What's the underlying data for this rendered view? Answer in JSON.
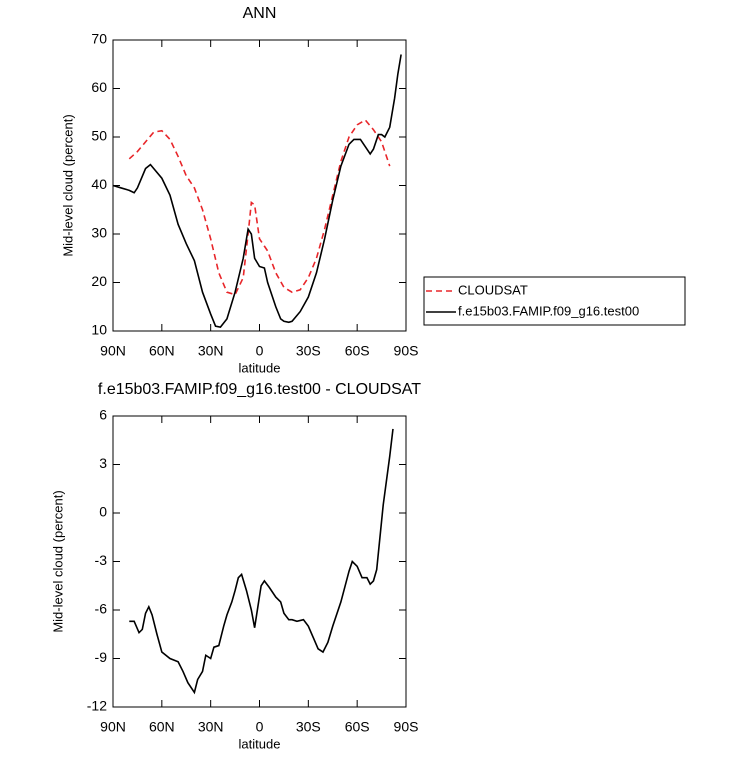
{
  "chart_data": [
    {
      "type": "line",
      "title": "ANN",
      "ylabel": "Mid-level cloud (percent)",
      "xlabel": "latitude",
      "xlim": [
        90,
        -90
      ],
      "xticks": [
        {
          "value": 90,
          "label": "90N"
        },
        {
          "value": 60,
          "label": "60N"
        },
        {
          "value": 30,
          "label": "30N"
        },
        0,
        {
          "value": -30,
          "label": "30S"
        },
        {
          "value": -60,
          "label": "60S"
        },
        {
          "value": -90,
          "label": "90S"
        }
      ],
      "ylim": [
        10,
        70
      ],
      "yticks": [
        10,
        20,
        30,
        40,
        50,
        60,
        70
      ],
      "legend": "right",
      "series": [
        {
          "name": "CLOUDSAT",
          "color": "#e8262a",
          "dash": "dashed",
          "x": [
            80,
            75,
            70,
            65,
            60,
            55,
            50,
            45,
            40,
            35,
            30,
            25,
            20,
            15,
            10,
            7,
            5,
            3,
            0,
            -3,
            -5,
            -10,
            -15,
            -20,
            -25,
            -30,
            -35,
            -40,
            -45,
            -50,
            -55,
            -60,
            -65,
            -70,
            -75,
            -80
          ],
          "values": [
            45.5,
            47,
            49,
            51,
            51.3,
            49.5,
            46,
            42,
            39.5,
            35,
            29,
            22,
            18,
            17.5,
            21,
            30,
            36.5,
            36,
            29,
            27.5,
            26.5,
            22,
            19,
            18,
            18.5,
            21,
            25,
            31,
            38,
            45,
            50,
            52.5,
            53.5,
            51.5,
            49,
            44
          ]
        },
        {
          "name": "f.e15b03.FAMIP.f09_g16.test00",
          "color": "#000000",
          "dash": "solid",
          "x": [
            90,
            85,
            80,
            77,
            75,
            70,
            67,
            65,
            60,
            55,
            50,
            45,
            40,
            35,
            30,
            27,
            24,
            20,
            15,
            10,
            7,
            5,
            3,
            0,
            -3,
            -5,
            -10,
            -13,
            -15,
            -18,
            -20,
            -25,
            -30,
            -35,
            -40,
            -45,
            -50,
            -55,
            -58,
            -62,
            -65,
            -68,
            -70,
            -73,
            -75,
            -77,
            -80,
            -83,
            -85,
            -87
          ],
          "values": [
            40,
            39.5,
            39,
            38.5,
            39.5,
            43.5,
            44.3,
            43.5,
            41.5,
            38,
            32,
            28,
            24.5,
            18,
            13.5,
            11,
            10.8,
            12.5,
            18,
            25,
            31,
            30,
            25,
            23.3,
            23,
            20,
            15,
            12.5,
            12,
            11.8,
            12,
            14,
            17,
            22,
            29,
            37,
            44,
            48.5,
            49.5,
            49.5,
            48,
            46.5,
            47.5,
            50.5,
            50.5,
            50,
            52,
            58,
            63,
            67
          ]
        }
      ]
    },
    {
      "type": "line",
      "title": "f.e15b03.FAMIP.f09_g16.test00 - CLOUDSAT",
      "ylabel": "Mid-level cloud (percent)",
      "xlabel": "latitude",
      "xlim": [
        90,
        -90
      ],
      "xticks": [
        {
          "value": 90,
          "label": "90N"
        },
        {
          "value": 60,
          "label": "60N"
        },
        {
          "value": 30,
          "label": "30N"
        },
        0,
        {
          "value": -30,
          "label": "30S"
        },
        {
          "value": -60,
          "label": "60S"
        },
        {
          "value": -90,
          "label": "90S"
        }
      ],
      "ylim": [
        -12,
        6
      ],
      "yticks": [
        -12,
        -9,
        -6,
        -3,
        0,
        3,
        6
      ],
      "color": "#000000",
      "x": [
        80,
        77,
        74,
        72,
        70,
        68,
        66,
        63,
        60,
        55,
        50,
        47,
        44,
        40,
        38,
        35,
        33,
        30,
        28,
        25,
        22,
        20,
        17,
        15,
        13,
        11,
        8,
        5,
        3,
        1,
        -1,
        -3,
        -6,
        -10,
        -13,
        -15,
        -18,
        -20,
        -23,
        -27,
        -30,
        -33,
        -36,
        -39,
        -42,
        -45,
        -50,
        -55,
        -57,
        -60,
        -63,
        -66,
        -68,
        -70,
        -72,
        -74,
        -76,
        -78,
        -80,
        -82
      ],
      "values": [
        -6.7,
        -6.7,
        -7.4,
        -7.2,
        -6.2,
        -5.8,
        -6.3,
        -7.5,
        -8.6,
        -9.0,
        -9.2,
        -9.8,
        -10.5,
        -11.1,
        -10.3,
        -9.8,
        -8.8,
        -9.0,
        -8.3,
        -8.2,
        -7.0,
        -6.3,
        -5.5,
        -4.8,
        -4.0,
        -3.8,
        -4.8,
        -6.0,
        -7.1,
        -5.8,
        -4.5,
        -4.2,
        -4.6,
        -5.2,
        -5.5,
        -6.2,
        -6.6,
        -6.6,
        -6.7,
        -6.6,
        -7.0,
        -7.7,
        -8.4,
        -8.6,
        -8.0,
        -7.0,
        -5.5,
        -3.6,
        -3.0,
        -3.3,
        -4.0,
        -4.0,
        -4.4,
        -4.2,
        -3.5,
        -1.5,
        0.5,
        2.0,
        3.5,
        5.2
      ]
    }
  ]
}
